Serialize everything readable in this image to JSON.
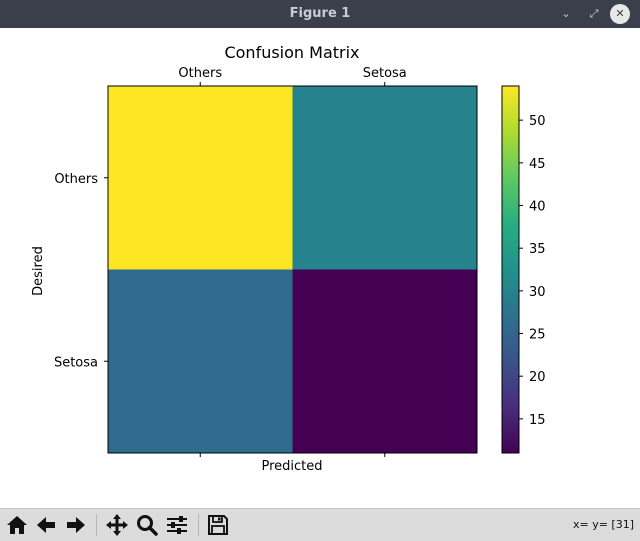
{
  "window": {
    "title": "Figure 1"
  },
  "chart_data": {
    "type": "heatmap",
    "title": "Confusion Matrix",
    "xlabel": "Predicted",
    "ylabel": "Desired",
    "x_categories": [
      "Others",
      "Setosa"
    ],
    "y_categories": [
      "Others",
      "Setosa"
    ],
    "values": [
      [
        54,
        30
      ],
      [
        26,
        11
      ]
    ],
    "colormap": "viridis",
    "vmin": 11,
    "vmax": 54,
    "colorbar_ticks": [
      15,
      20,
      25,
      30,
      35,
      40,
      45,
      50
    ],
    "x_tick_position": "top"
  },
  "toolbar": {
    "buttons": [
      {
        "name": "home-button",
        "icon": "home-icon"
      },
      {
        "name": "back-button",
        "icon": "arrow-left-icon"
      },
      {
        "name": "forward-button",
        "icon": "arrow-right-icon"
      },
      {
        "name": "pan-button",
        "icon": "move-icon"
      },
      {
        "name": "zoom-button",
        "icon": "magnifier-icon"
      },
      {
        "name": "subplots-button",
        "icon": "sliders-icon"
      },
      {
        "name": "save-button",
        "icon": "floppy-icon"
      }
    ],
    "coords_text": "x= y= [31]"
  }
}
